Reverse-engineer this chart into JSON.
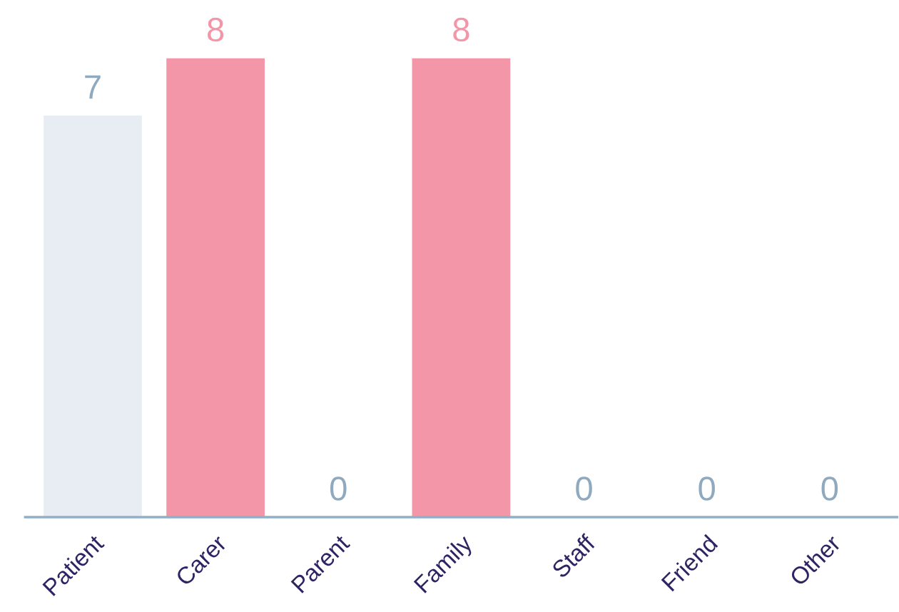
{
  "chart_data": {
    "type": "bar",
    "categories": [
      "Patient",
      "Carer",
      "Parent",
      "Family",
      "Staff",
      "Friend",
      "Other"
    ],
    "values": [
      7,
      8,
      0,
      8,
      0,
      0,
      0
    ],
    "colors": [
      "#e8edf4",
      "#f296a8",
      "#e8edf4",
      "#f296a8",
      "#e8edf4",
      "#e8edf4",
      "#e8edf4"
    ],
    "data_labels": true,
    "grid": false,
    "legend": false
  }
}
